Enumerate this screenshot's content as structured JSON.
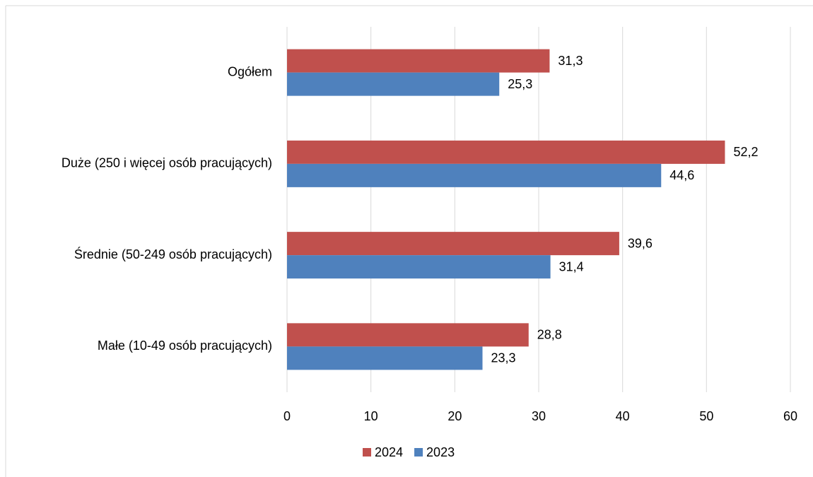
{
  "chart_data": {
    "type": "hbar",
    "categories": [
      "Ogółem",
      "Duże (250 i więcej osób pracujących)",
      "Średnie (50-249 osób pracujących)",
      "Małe (10-49 osób pracujących)"
    ],
    "series": [
      {
        "name": "2024",
        "color": "#c0504d",
        "values": [
          31.3,
          52.2,
          39.6,
          28.8
        ],
        "value_labels": [
          "31,3",
          "52,2",
          "39,6",
          "28,8"
        ]
      },
      {
        "name": "2023",
        "color": "#4f81bd",
        "values": [
          25.3,
          44.6,
          31.4,
          23.3
        ],
        "value_labels": [
          "25,3",
          "44,6",
          "31,4",
          "23,3"
        ]
      }
    ],
    "xlim": [
      0,
      60
    ],
    "xticks": [
      0,
      10,
      20,
      30,
      40,
      50,
      60
    ],
    "grid": true,
    "legend": "bottom"
  }
}
